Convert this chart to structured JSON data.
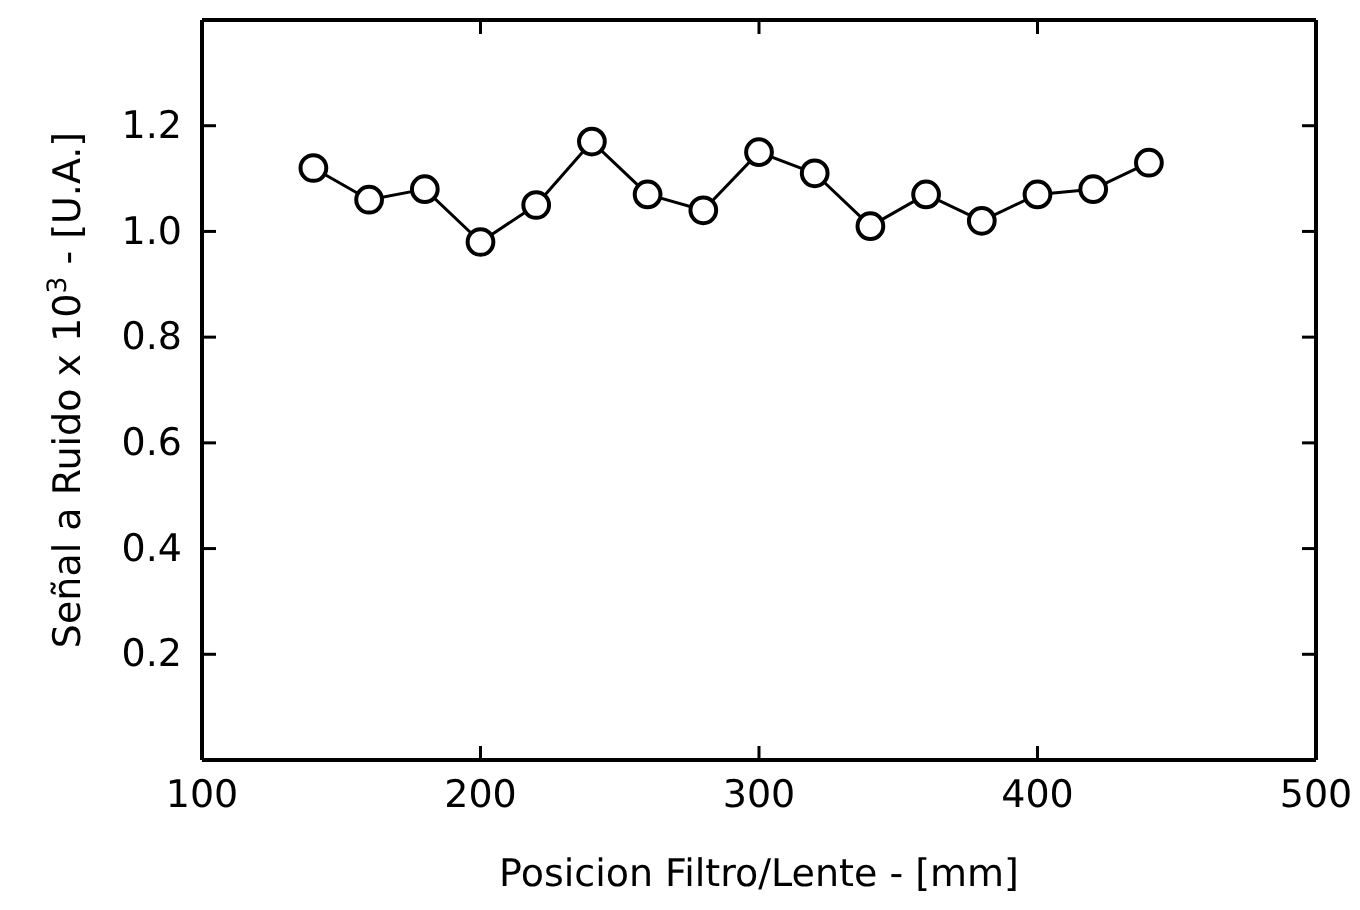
{
  "chart_data": {
    "type": "line",
    "xlabel": "Posicion Filtro/Lente - [mm]",
    "ylabel": "Señal a Ruido x 10$^{3}$ - [U.A.]",
    "x": [
      140,
      160,
      180,
      200,
      220,
      240,
      260,
      280,
      300,
      320,
      340,
      360,
      380,
      400,
      420,
      440
    ],
    "series": [
      {
        "color": "#000000",
        "values": [
          1.12,
          1.06,
          1.08,
          0.98,
          1.05,
          1.17,
          1.07,
          1.04,
          1.15,
          1.11,
          1.01,
          1.07,
          1.02,
          1.07,
          1.08,
          1.13
        ]
      }
    ],
    "xlim": [
      100,
      500
    ],
    "xticks": [
      100,
      200,
      300,
      400,
      500
    ],
    "ylim": [
      0,
      1.4
    ],
    "yticks": [
      0.2,
      0.4,
      0.6,
      0.8,
      {
        "value": 1,
        "label": "1.0"
      },
      1.2
    ],
    "marker": "circle",
    "line_style": "solid"
  }
}
